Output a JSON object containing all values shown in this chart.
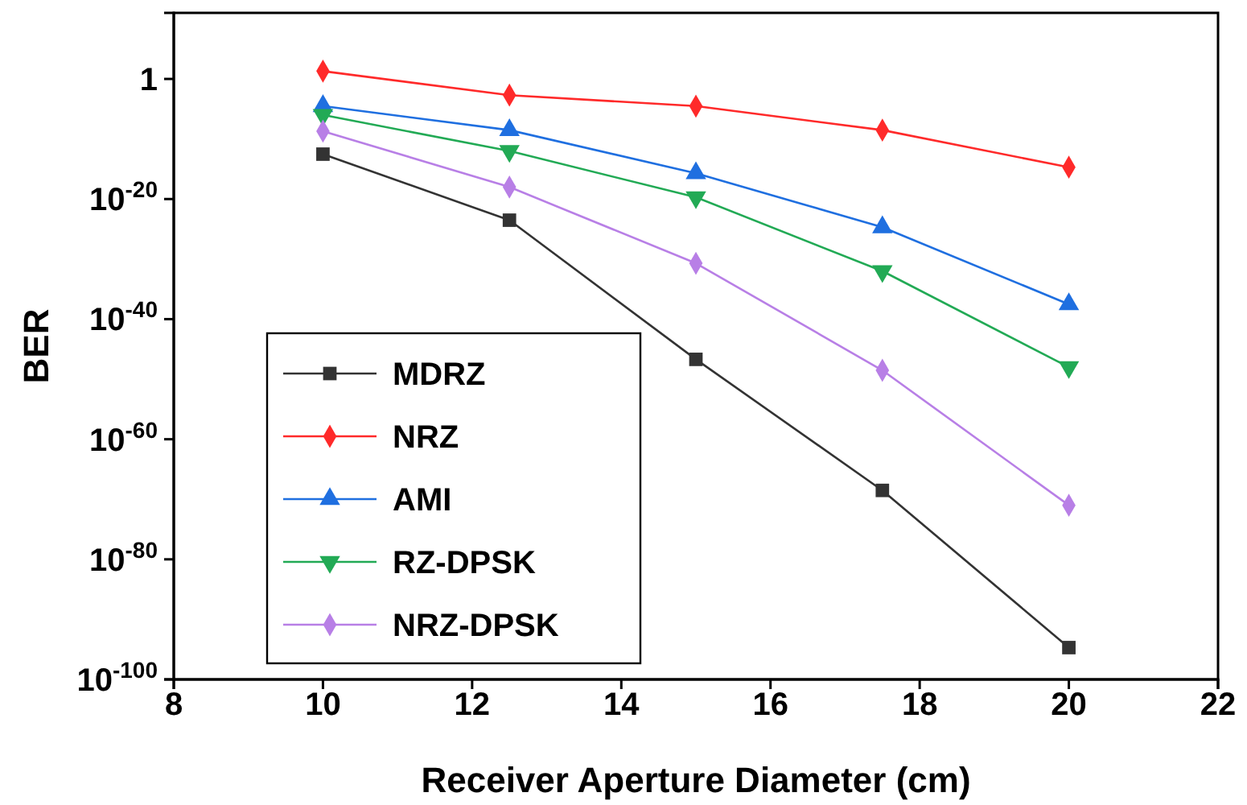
{
  "chart_data": {
    "type": "line",
    "xlabel": "Receiver Aperture Diameter (cm)",
    "ylabel": "BER",
    "x": [
      10,
      12.5,
      15,
      17.5,
      20
    ],
    "series": [
      {
        "name": "MDRZ",
        "color": "#333333",
        "marker": "square",
        "values": [
          3e-13,
          3e-24,
          2e-47,
          3e-69,
          2e-95
        ]
      },
      {
        "name": "NRZ",
        "color": "#ff2a2a",
        "marker": "diamond",
        "values": [
          20,
          0.002,
          3e-05,
          3e-09,
          2e-15
        ]
      },
      {
        "name": "AMI",
        "color": "#1f6fe0",
        "marker": "triangle",
        "values": [
          3e-05,
          3e-09,
          2e-16,
          2e-25,
          3e-38
        ]
      },
      {
        "name": "RZ-DPSK",
        "color": "#22aa55",
        "marker": "triangle-down",
        "values": [
          1e-06,
          1e-12,
          2e-20,
          1e-32,
          1e-48
        ]
      },
      {
        "name": "NRZ-DPSK",
        "color": "#b87fe6",
        "marker": "diamond",
        "values": [
          2e-09,
          1e-18,
          2e-31,
          3e-49,
          1e-71
        ]
      }
    ],
    "log": true,
    "xlim": [
      8,
      22
    ],
    "xticks": [
      8,
      10,
      12,
      14,
      16,
      18,
      20,
      22
    ],
    "ylim": [
      1e-100,
      100000000000.0
    ],
    "yticks": [
      {
        "value": 1,
        "label": "1"
      },
      {
        "value": 1e-20,
        "label": "10$^{-20}$"
      },
      {
        "value": 1e-40,
        "label": "10$^{-40}$"
      },
      {
        "value": 1e-60,
        "label": "10$^{-60}$"
      },
      {
        "value": 1e-80,
        "label": "10$^{-80}$"
      },
      {
        "value": 1e-100,
        "label": "10$^{-100}$"
      }
    ],
    "grid": false,
    "legend": "bottom left",
    "line_style": "solid"
  }
}
